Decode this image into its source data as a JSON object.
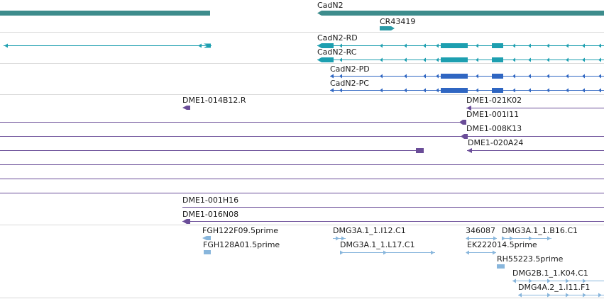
{
  "colors": {
    "gene": "#3d8c8c",
    "gene_rna": "#2a9aa6",
    "transcript_rd_rc": "#1d9fb0",
    "transcript_pd_pc": "#2f66c2",
    "clone": "#6a4d98",
    "est": "#88b6dc",
    "separator": "#d9d9d9"
  },
  "gene_track": {
    "genes": [
      {
        "label": ""
      },
      {
        "label": "CadN2"
      },
      {
        "label": "CR43419"
      }
    ]
  },
  "transcript_track": {
    "transcripts": [
      {
        "label": ""
      },
      {
        "label": "CadN2-RD"
      },
      {
        "label": "CadN2-RC"
      }
    ]
  },
  "protein_track": {
    "proteins": [
      {
        "label": "CadN2-PD"
      },
      {
        "label": "CadN2-PC"
      }
    ]
  },
  "clone_track": {
    "clones": [
      {
        "label": "DME1-014B12.R"
      },
      {
        "label": "DME1-021K02"
      },
      {
        "label": "DME1-001I11"
      },
      {
        "label": "DME1-008K13"
      },
      {
        "label": "DME1-020A24"
      },
      {
        "label": ""
      },
      {
        "label": ""
      },
      {
        "label": ""
      },
      {
        "label": "DME1-001H16"
      },
      {
        "label": "DME1-016N08"
      }
    ]
  },
  "est_track": {
    "ests": [
      {
        "label": "FGH122F09.5prime"
      },
      {
        "label": "FGH128A01.5prime"
      },
      {
        "label": "DMG3A.1_1.I12.C1"
      },
      {
        "label": "DMG3A.1_1.L17.C1"
      },
      {
        "label": "346087"
      },
      {
        "label": "DMG3A.1_1.B16.C1"
      },
      {
        "label": "EK222014.5prime"
      },
      {
        "label": "RH55223.5prime"
      },
      {
        "label": "DMG2B.1_1.K04.C1"
      },
      {
        "label": "DMG4A.2_1.I11.F1"
      }
    ]
  }
}
